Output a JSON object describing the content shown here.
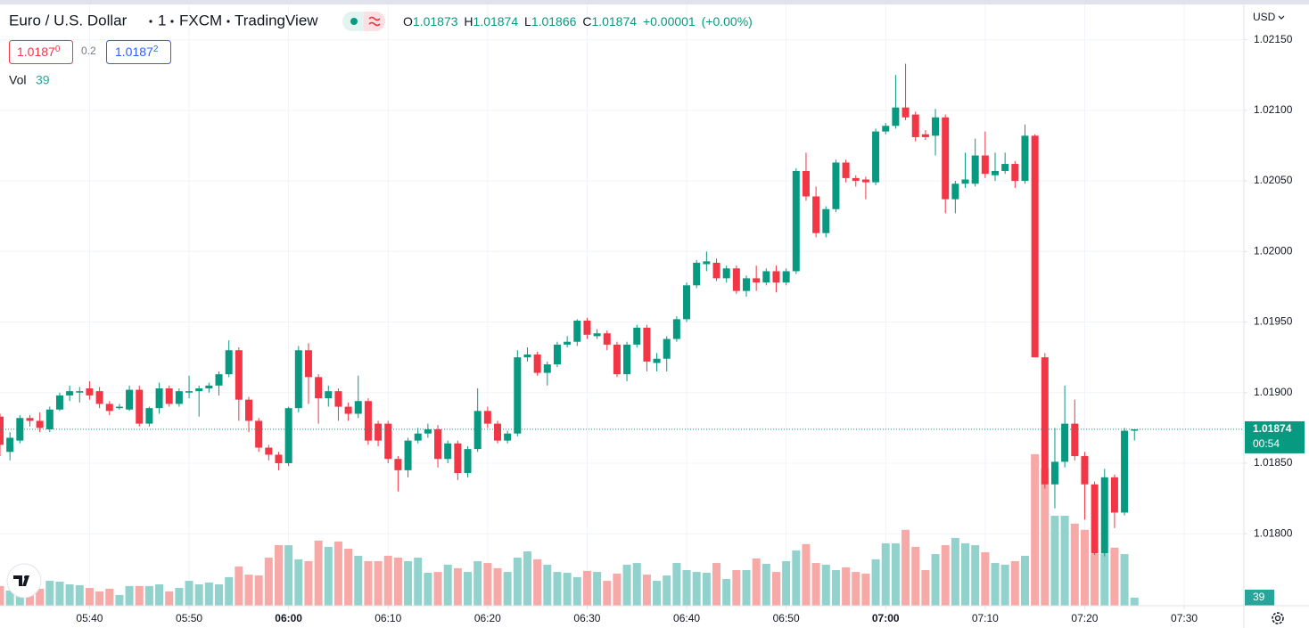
{
  "chart_data": {
    "type": "candlestick",
    "title": "Euro / U.S. Dollar",
    "interval": "1",
    "exchange": "FXCM",
    "brand": "TradingView",
    "legend": {
      "o_label": "O",
      "o": "1.01873",
      "h_label": "H",
      "h": "1.01874",
      "l_label": "L",
      "l": "1.01866",
      "c_label": "C",
      "c": "1.01874",
      "change": "+0.00001",
      "change_pct": "(+0.00%)"
    },
    "sell_main": "1.0187",
    "sell_pip": "0",
    "spread": "0.2",
    "buy_main": "1.0187",
    "buy_pip": "2",
    "volume_label": "Vol",
    "currency": "USD",
    "countdown": "00:54",
    "up_color": "#089981",
    "down_color": "#f23645",
    "volume_up_color": "#92d2cc",
    "volume_down_color": "#f7a9a7",
    "grid": true,
    "x": [
      "05:31",
      "05:32",
      "05:33",
      "05:34",
      "05:35",
      "05:36",
      "05:37",
      "05:38",
      "05:39",
      "05:40",
      "05:41",
      "05:42",
      "05:43",
      "05:44",
      "05:45",
      "05:46",
      "05:47",
      "05:48",
      "05:49",
      "05:50",
      "05:51",
      "05:52",
      "05:53",
      "05:54",
      "05:55",
      "05:56",
      "05:57",
      "05:58",
      "05:59",
      "06:00",
      "06:01",
      "06:02",
      "06:03",
      "06:04",
      "06:05",
      "06:06",
      "06:07",
      "06:08",
      "06:09",
      "06:10",
      "06:11",
      "06:12",
      "06:13",
      "06:14",
      "06:15",
      "06:16",
      "06:17",
      "06:18",
      "06:19",
      "06:20",
      "06:21",
      "06:22",
      "06:23",
      "06:24",
      "06:25",
      "06:26",
      "06:27",
      "06:28",
      "06:29",
      "06:30",
      "06:31",
      "06:32",
      "06:33",
      "06:34",
      "06:35",
      "06:36",
      "06:37",
      "06:38",
      "06:39",
      "06:40",
      "06:41",
      "06:42",
      "06:43",
      "06:44",
      "06:45",
      "06:46",
      "06:47",
      "06:48",
      "06:49",
      "06:50",
      "06:51",
      "06:52",
      "06:53",
      "06:54",
      "06:55",
      "06:56",
      "06:57",
      "06:58",
      "06:59",
      "07:00",
      "07:01",
      "07:02",
      "07:03",
      "07:04",
      "07:05",
      "07:06",
      "07:07",
      "07:08",
      "07:09",
      "07:10",
      "07:11",
      "07:12",
      "07:13",
      "07:14",
      "07:15",
      "07:16",
      "07:17",
      "07:18",
      "07:19",
      "07:20",
      "07:21",
      "07:22",
      "07:23",
      "07:24",
      "07:25"
    ],
    "open": [
      1.01883,
      1.01858,
      1.01866,
      1.01882,
      1.0188,
      1.01874,
      1.01888,
      1.01898,
      1.019,
      1.01903,
      1.01901,
      1.01892,
      1.01889,
      1.01888,
      1.01902,
      1.01878,
      1.01889,
      1.01903,
      1.01892,
      1.019,
      1.01901,
      1.01903,
      1.01905,
      1.01913,
      1.0193,
      1.01895,
      1.0188,
      1.01861,
      1.01856,
      1.0185,
      1.01889,
      1.0193,
      1.01911,
      1.01896,
      1.01901,
      1.0189,
      1.01885,
      1.01894,
      1.01878,
      1.01878,
      1.01853,
      1.01845,
      1.01866,
      1.01871,
      1.01874,
      1.01853,
      1.01864,
      1.01843,
      1.0186,
      1.01887,
      1.01878,
      1.01866,
      1.01871,
      1.01925,
      1.01927,
      1.01914,
      1.0192,
      1.01934,
      1.01936,
      1.01951,
      1.0194,
      1.01942,
      1.01934,
      1.01913,
      1.01934,
      1.01946,
      1.01921,
      1.01924,
      1.01938,
      1.01952,
      1.01976,
      1.01991,
      1.01992,
      1.01981,
      1.01988,
      1.01972,
      1.01981,
      1.01978,
      1.01986,
      1.01978,
      1.01986,
      1.02057,
      1.02039,
      1.02013,
      1.0203,
      1.02063,
      1.02052,
      1.02051,
      1.02049,
      1.02085,
      1.02089,
      1.02102,
      1.02097,
      1.02083,
      1.02082,
      1.02095,
      1.02037,
      1.02048,
      1.02048,
      1.02068,
      1.02054,
      1.02057,
      1.02062,
      1.0205,
      1.02082,
      1.01925,
      1.01835,
      1.01851,
      1.01878,
      1.01855,
      1.01835,
      1.01786,
      1.0184,
      1.01815,
      1.01873
    ],
    "high": [
      1.01885,
      1.01872,
      1.01884,
      1.01884,
      1.01886,
      1.0189,
      1.019,
      1.01905,
      1.01904,
      1.01908,
      1.01904,
      1.01894,
      1.01892,
      1.01905,
      1.01905,
      1.0189,
      1.01907,
      1.01905,
      1.01903,
      1.01912,
      1.01905,
      1.01907,
      1.01915,
      1.01937,
      1.01932,
      1.01897,
      1.01882,
      1.01863,
      1.01858,
      1.0189,
      1.01933,
      1.01935,
      1.01913,
      1.01905,
      1.01903,
      1.01893,
      1.01912,
      1.01896,
      1.0188,
      1.0188,
      1.01855,
      1.01868,
      1.01875,
      1.01878,
      1.01877,
      1.01866,
      1.01866,
      1.01862,
      1.01903,
      1.0189,
      1.0188,
      1.01873,
      1.0193,
      1.01932,
      1.01929,
      1.01922,
      1.01936,
      1.0194,
      1.01952,
      1.01953,
      1.01945,
      1.01944,
      1.01936,
      1.01936,
      1.01948,
      1.01948,
      1.01928,
      1.0194,
      1.01954,
      1.01978,
      1.01994,
      1.02,
      1.01995,
      1.0199,
      1.0199,
      1.01983,
      1.0199,
      1.01988,
      1.0199,
      1.01988,
      1.02059,
      1.0207,
      1.02046,
      1.02032,
      1.02065,
      1.02065,
      1.02054,
      1.02053,
      1.02087,
      1.02091,
      1.02125,
      1.02133,
      1.02099,
      1.02086,
      1.02101,
      1.02097,
      1.0205,
      1.0207,
      1.0208,
      1.02085,
      1.0207,
      1.0207,
      1.02064,
      1.0209,
      1.02083,
      1.01928,
      1.01875,
      1.01905,
      1.01895,
      1.01858,
      1.01837,
      1.01846,
      1.01842,
      1.01875,
      1.01874
    ],
    "low": [
      1.01855,
      1.01852,
      1.01864,
      1.01876,
      1.01872,
      1.01872,
      1.01887,
      1.01894,
      1.01893,
      1.01895,
      1.01889,
      1.01884,
      1.01888,
      1.01887,
      1.01876,
      1.01876,
      1.01885,
      1.0189,
      1.0189,
      1.01896,
      1.01883,
      1.019,
      1.01898,
      1.01911,
      1.0188,
      1.01872,
      1.01858,
      1.01852,
      1.01845,
      1.01848,
      1.01886,
      1.01892,
      1.01878,
      1.0189,
      1.0188,
      1.0188,
      1.01882,
      1.01863,
      1.01862,
      1.0185,
      1.0183,
      1.0184,
      1.01864,
      1.01868,
      1.01847,
      1.0185,
      1.01838,
      1.0184,
      1.01858,
      1.01875,
      1.01864,
      1.01864,
      1.01869,
      1.01922,
      1.01912,
      1.01905,
      1.01918,
      1.01932,
      1.01933,
      1.01938,
      1.01938,
      1.0193,
      1.01911,
      1.01908,
      1.01932,
      1.01915,
      1.01915,
      1.01915,
      1.01936,
      1.0195,
      1.01974,
      1.01986,
      1.01979,
      1.01978,
      1.0197,
      1.01968,
      1.01972,
      1.01976,
      1.01971,
      1.01976,
      1.01984,
      1.02036,
      1.0201,
      1.0201,
      1.02028,
      1.02049,
      1.02046,
      1.02037,
      1.02047,
      1.02083,
      1.02087,
      1.02093,
      1.02078,
      1.02079,
      1.02068,
      1.02027,
      1.02027,
      1.02045,
      1.02046,
      1.02052,
      1.0205,
      1.02055,
      1.02045,
      1.02048,
      1.01925,
      1.01832,
      1.01818,
      1.01847,
      1.01852,
      1.0181,
      1.01785,
      1.01784,
      1.01804,
      1.01813,
      1.01866
    ],
    "close": [
      1.01863,
      1.01868,
      1.01882,
      1.0188,
      1.01875,
      1.01888,
      1.01898,
      1.01901,
      1.01901,
      1.01898,
      1.01892,
      1.01887,
      1.0189,
      1.01902,
      1.01878,
      1.01889,
      1.01903,
      1.01892,
      1.01901,
      1.01901,
      1.01903,
      1.01905,
      1.01913,
      1.0193,
      1.01895,
      1.0188,
      1.01861,
      1.01856,
      1.0185,
      1.01889,
      1.0193,
      1.01911,
      1.01896,
      1.01901,
      1.0189,
      1.01885,
      1.01894,
      1.01866,
      1.01866,
      1.01853,
      1.01845,
      1.01866,
      1.01871,
      1.01874,
      1.01853,
      1.01864,
      1.01843,
      1.0186,
      1.01887,
      1.01878,
      1.01866,
      1.01871,
      1.01925,
      1.01927,
      1.01914,
      1.0192,
      1.01934,
      1.01936,
      1.01951,
      1.01941,
      1.01942,
      1.01934,
      1.01913,
      1.01934,
      1.01946,
      1.01922,
      1.01924,
      1.01938,
      1.01952,
      1.01976,
      1.01992,
      1.01993,
      1.01981,
      1.01988,
      1.01972,
      1.01981,
      1.01978,
      1.01986,
      1.01978,
      1.01986,
      1.02057,
      1.02039,
      1.02013,
      1.0203,
      1.02063,
      1.02052,
      1.0205,
      1.02049,
      1.02085,
      1.02089,
      1.02102,
      1.02095,
      1.02081,
      1.02081,
      1.02095,
      1.02037,
      1.02048,
      1.02051,
      1.02068,
      1.02055,
      1.02057,
      1.02062,
      1.0205,
      1.02082,
      1.01925,
      1.01835,
      1.01851,
      1.01878,
      1.01855,
      1.01835,
      1.01786,
      1.0184,
      1.01815,
      1.01873,
      1.01874
    ],
    "volume": [
      95,
      73,
      95,
      86,
      82,
      120,
      116,
      103,
      99,
      86,
      69,
      82,
      52,
      95,
      95,
      95,
      103,
      69,
      86,
      120,
      103,
      112,
      103,
      138,
      189,
      150,
      146,
      232,
      292,
      292,
      224,
      215,
      314,
      284,
      310,
      275,
      241,
      215,
      215,
      241,
      232,
      215,
      232,
      159,
      163,
      198,
      181,
      163,
      215,
      206,
      181,
      163,
      232,
      262,
      224,
      198,
      163,
      159,
      138,
      168,
      163,
      120,
      155,
      198,
      206,
      150,
      120,
      146,
      206,
      172,
      163,
      159,
      206,
      129,
      172,
      172,
      228,
      202,
      163,
      215,
      267,
      297,
      206,
      198,
      172,
      185,
      163,
      155,
      224,
      301,
      301,
      366,
      284,
      172,
      249,
      292,
      327,
      301,
      292,
      258,
      206,
      198,
      215,
      241,
      731,
      662,
      434,
      434,
      396,
      366,
      249,
      249,
      280,
      249,
      39
    ],
    "xlim": [
      "05:31",
      "07:36"
    ],
    "xticks": [
      "05:40",
      "05:50",
      "06:00",
      "06:10",
      "06:20",
      "06:30",
      "06:40",
      "06:50",
      "07:00",
      "07:10",
      "07:20",
      "07:30"
    ],
    "ylim": [
      1.01749,
      1.02175
    ],
    "yticks": [
      {
        "value": 1.018,
        "label": "1.01800"
      },
      {
        "value": 1.0185,
        "label": "1.01850"
      },
      {
        "value": 1.019,
        "label": "1.01900"
      },
      {
        "value": 1.0195,
        "label": "1.01950"
      },
      {
        "value": 1.02,
        "label": "1.02000"
      },
      {
        "value": 1.0205,
        "label": "1.02050"
      },
      {
        "value": 1.021,
        "label": "1.02100"
      },
      {
        "value": 1.0215,
        "label": "1.02150"
      }
    ],
    "volume_ylim": [
      0,
      2900
    ]
  }
}
